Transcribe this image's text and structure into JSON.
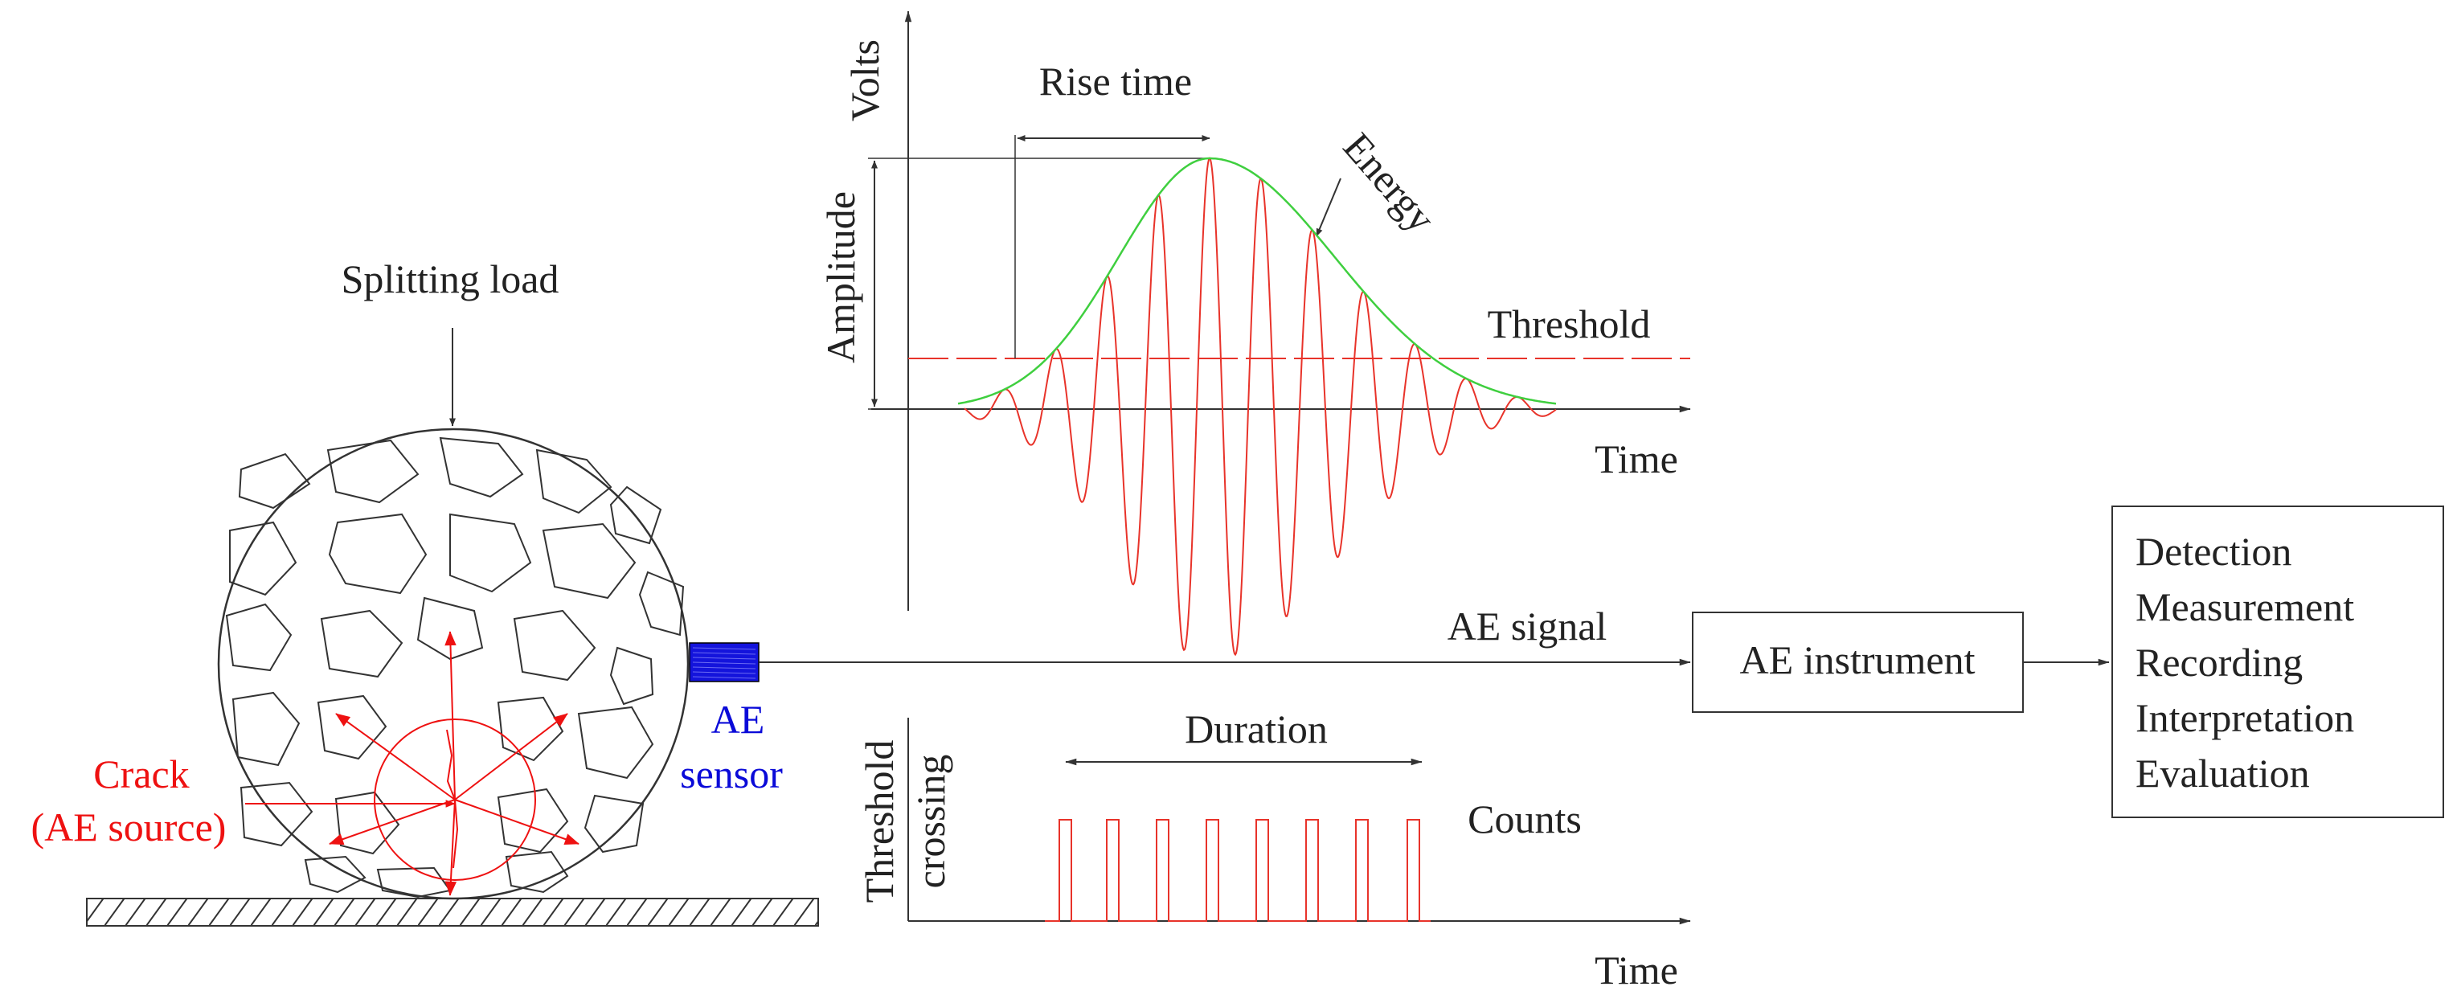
{
  "labels": {
    "splitting_load": "Splitting load",
    "crack_line1": "Crack",
    "crack_line2": "(AE source)",
    "sensor_line1": "AE",
    "sensor_line2": "sensor",
    "volts": "Volts",
    "rise_time": "Rise time",
    "energy": "Energy",
    "amplitude": "Amplitude",
    "threshold": "Threshold",
    "time_top": "Time",
    "ae_signal": "AE signal",
    "ae_instrument": "AE instrument",
    "duration": "Duration",
    "counts": "Counts",
    "threshold_crossing_line1": "Threshold",
    "threshold_crossing_line2": "crossing",
    "time_bottom": "Time"
  },
  "outputs": [
    "Detection",
    "Measurement",
    "Recording",
    "Interpretation",
    "Evaluation"
  ],
  "colors": {
    "line": "#333333",
    "signal": "#e8332a",
    "envelope": "#3fcf3f",
    "crack": "#ee1111",
    "sensor_text": "#0a0ad8",
    "sensor_fill": "#1414dc"
  }
}
